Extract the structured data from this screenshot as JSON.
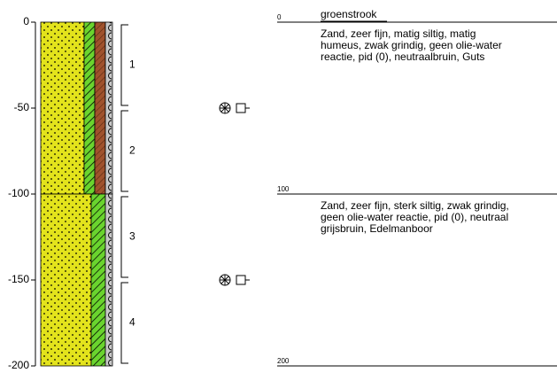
{
  "depth_axis": {
    "ylim": [
      0,
      -200
    ],
    "yticks": [
      0,
      -50,
      -100,
      -150,
      -200
    ]
  },
  "layers": [
    {
      "top": 0,
      "bottom": -100
    },
    {
      "top": -100,
      "bottom": -200
    }
  ],
  "samples": [
    {
      "label": "1",
      "top": 0,
      "bottom": -50
    },
    {
      "label": "2",
      "top": -50,
      "bottom": -100
    },
    {
      "label": "3",
      "top": -100,
      "bottom": -150
    },
    {
      "label": "4",
      "top": -150,
      "bottom": -200
    }
  ],
  "markers": [
    {
      "depth": -50
    },
    {
      "depth": -150
    }
  ],
  "log": {
    "lim": [
      0,
      200
    ],
    "boundaries": [
      0,
      100,
      200
    ],
    "name": "groenstrook",
    "descriptions": [
      [
        "Zand, zeer fijn, matig siltig, matig",
        "humeus, zwak grindig, geen olie-water",
        "reactie, pid (0), neutraalbruin, Guts"
      ],
      [
        "Zand, zeer fijn, sterk siltig, zwak grindig,",
        "geen olie-water reactie, pid (0), neutraal",
        "grijsbruin, Edelmanboor"
      ]
    ]
  }
}
